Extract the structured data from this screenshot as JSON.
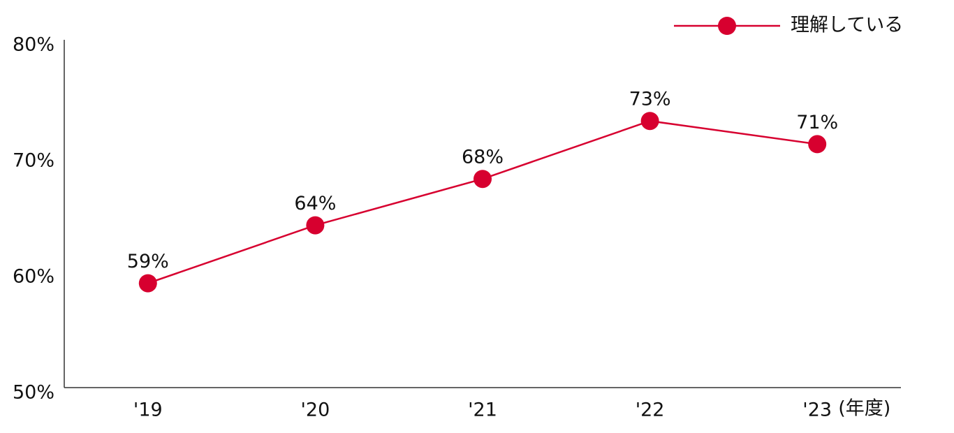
{
  "chart_data": {
    "type": "line",
    "categories": [
      "'19",
      "'20",
      "'21",
      "'22",
      "'23"
    ],
    "x_label": "(年度)",
    "series": [
      {
        "name": "理解している",
        "color": "#d7002f",
        "values": [
          59,
          64,
          68,
          73,
          71
        ],
        "value_labels": [
          "59%",
          "64%",
          "68%",
          "73%",
          "71%"
        ]
      }
    ],
    "ylim": [
      50,
      80
    ],
    "yticks": [
      {
        "value": 50,
        "label": "50%"
      },
      {
        "value": 60,
        "label": "60%"
      },
      {
        "value": 70,
        "label": "70%"
      },
      {
        "value": 80,
        "label": "80%"
      }
    ],
    "grid": false,
    "legend": "top-right"
  }
}
